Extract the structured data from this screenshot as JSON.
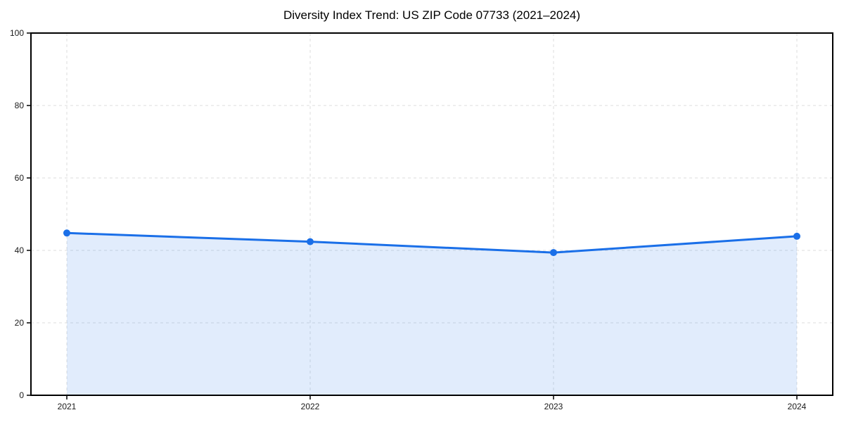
{
  "page": {
    "background": "#ffffff"
  },
  "chart_data": {
    "type": "area",
    "title": "Diversity Index Trend: US ZIP Code 07733 (2021–2024)",
    "categories": [
      "2021",
      "2022",
      "2023",
      "2024"
    ],
    "series": [
      {
        "name": "Diversity Index",
        "values": [
          44.8,
          42.4,
          39.4,
          43.9
        ]
      }
    ],
    "xlabel": "",
    "ylabel": "",
    "ylim": [
      0,
      100
    ],
    "yticks": [
      0,
      20,
      40,
      60,
      80,
      100
    ],
    "grid": true,
    "grid_style": "dashed",
    "legend": "none",
    "marker": "circle",
    "colors": {
      "line": "#1a6fe8",
      "fill": "#1a6fe8",
      "fill_opacity": 0.13,
      "grid": "#dedede",
      "axis": "#000000",
      "tick_text": "#1a1a1a"
    }
  }
}
